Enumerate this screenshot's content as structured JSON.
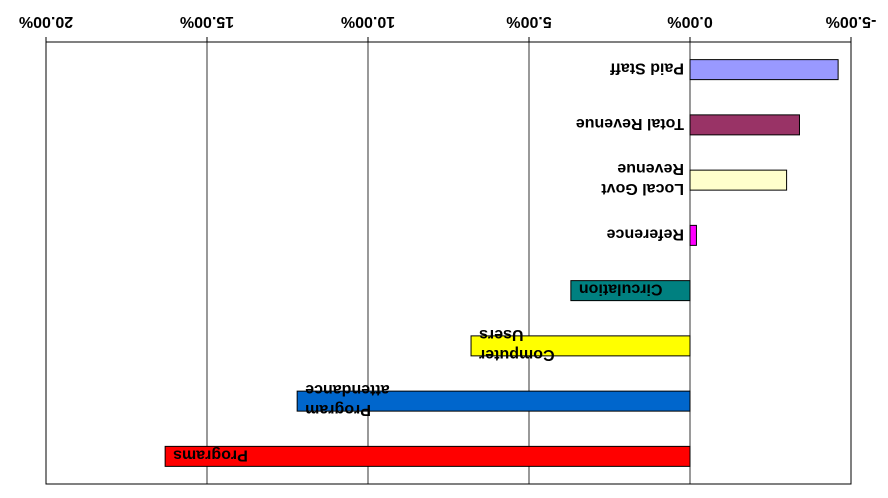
{
  "chart_data": {
    "type": "bar",
    "orientation": "horizontal",
    "rendered_rotated_180": true,
    "categories": [
      "Paid Staff",
      "Total Revenue",
      "Local Govt Revenue",
      "Reference",
      "Circulation",
      "Computer Users",
      "Program attendance",
      "Programs"
    ],
    "category_label_lines": [
      [
        "Paid Staff"
      ],
      [
        "Total Revenue"
      ],
      [
        "Local Govt",
        "Revenue"
      ],
      [
        "Reference"
      ],
      [
        "Circulation"
      ],
      [
        "Computer",
        "Users"
      ],
      [
        "Program",
        "attendance"
      ],
      [
        "Programs"
      ]
    ],
    "values": [
      -4.6,
      -3.4,
      -3.0,
      -0.2,
      3.7,
      6.8,
      12.2,
      16.3
    ],
    "colors": [
      "#9999ff",
      "#993366",
      "#ffffcc",
      "#ff00ff",
      "#008080",
      "#ffff00",
      "#0066cc",
      "#ff0000"
    ],
    "xlim": [
      -5,
      20
    ],
    "xticks": [
      -5,
      0,
      5,
      10,
      15,
      20
    ],
    "xtick_labels": [
      "-5.00%",
      "0.00%",
      "5.00%",
      "10.00%",
      "15.00%",
      "20.00%"
    ],
    "grid": "vertical",
    "title": "",
    "xlabel": "",
    "ylabel": ""
  }
}
